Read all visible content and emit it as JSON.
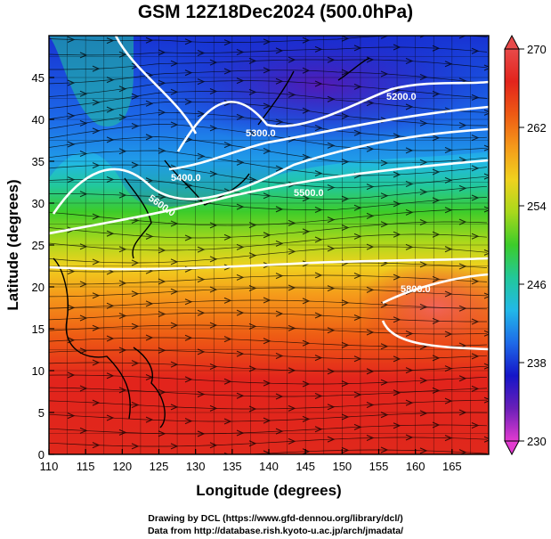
{
  "title": "GSM 12Z18Dec2024 (500.0hPa)",
  "x_axis": {
    "label": "Longitude (degrees)",
    "min": 110,
    "max": 170,
    "ticks": [
      "110",
      "115",
      "120",
      "125",
      "130",
      "135",
      "140",
      "145",
      "150",
      "155",
      "160",
      "165"
    ]
  },
  "y_axis": {
    "label": "Latitude  (degrees)",
    "min": 0,
    "max": 50,
    "ticks": [
      "0",
      "5",
      "10",
      "15",
      "20",
      "25",
      "30",
      "35",
      "40",
      "45"
    ]
  },
  "colorbar": {
    "min": 230,
    "max": 270,
    "ticks": [
      "230",
      "238",
      "246",
      "254",
      "262",
      "270"
    ],
    "colors": [
      "#e23bd0",
      "#6a1fb8",
      "#1515c8",
      "#1e6ae8",
      "#22b8e8",
      "#22c89a",
      "#3ccc2a",
      "#a8d81c",
      "#f0d21e",
      "#f59a1a",
      "#ee5a14",
      "#e2241c",
      "#e84a4a"
    ]
  },
  "contours": [
    {
      "label": "5300.0"
    },
    {
      "label": "5200.0"
    },
    {
      "label": "5400.0"
    },
    {
      "label": "5600.0"
    },
    {
      "label": "5500.0"
    },
    {
      "label": "5800.0"
    }
  ],
  "credits": {
    "line1": "Drawing by DCL (https://www.gfd-dennou.org/library/dcl/)",
    "line2": "Data from http://database.rish.kyoto-u.ac.jp/arch/jmadata/"
  }
}
